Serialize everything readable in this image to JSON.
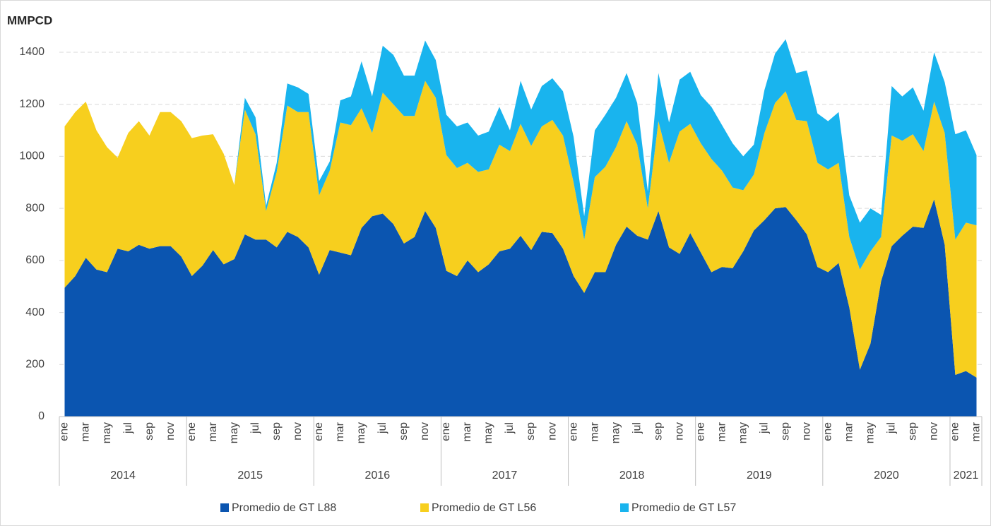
{
  "chart_data": {
    "type": "stacked_area",
    "y_title": "MMPCD",
    "categories": [
      "ene",
      null,
      "mar",
      null,
      "may",
      null,
      "jul",
      null,
      "sep",
      null,
      "nov",
      null,
      "ene",
      null,
      "mar",
      null,
      "may",
      null,
      "jul",
      null,
      "sep",
      null,
      "nov",
      null,
      "ene",
      null,
      "mar",
      null,
      "may",
      null,
      "jul",
      null,
      "sep",
      null,
      "nov",
      null,
      "ene",
      null,
      "mar",
      null,
      "may",
      null,
      "jul",
      null,
      "sep",
      null,
      "nov",
      null,
      "ene",
      null,
      "mar",
      null,
      "may",
      null,
      "jul",
      null,
      "sep",
      null,
      "nov",
      null,
      "ene",
      null,
      "mar",
      null,
      "may",
      null,
      "jul",
      null,
      "sep",
      null,
      "nov",
      null,
      "ene",
      null,
      "mar",
      null,
      "may",
      null,
      "jul",
      null,
      "sep",
      null,
      "nov",
      null,
      "ene",
      null,
      "mar"
    ],
    "years": [
      "2014",
      "2015",
      "2016",
      "2017",
      "2018",
      "2019",
      "2020",
      "2021"
    ],
    "ylim": [
      0,
      1400
    ],
    "yticks": [
      0,
      200,
      400,
      600,
      800,
      1000,
      1200,
      1400
    ],
    "grid": true,
    "legend": "bottom",
    "series": [
      {
        "name": "Promedio de GT L88",
        "color": "#0b55b0",
        "values": [
          495,
          540,
          610,
          565,
          555,
          645,
          635,
          660,
          645,
          655,
          655,
          615,
          540,
          580,
          640,
          585,
          605,
          700,
          680,
          680,
          650,
          710,
          690,
          650,
          545,
          640,
          630,
          620,
          725,
          770,
          780,
          740,
          665,
          690,
          790,
          725,
          560,
          540,
          600,
          555,
          585,
          635,
          645,
          695,
          640,
          710,
          705,
          645,
          540,
          475,
          555,
          555,
          660,
          730,
          695,
          680,
          790,
          650,
          625,
          705,
          630,
          555,
          575,
          570,
          635,
          715,
          755,
          800,
          805,
          755,
          700,
          575,
          555,
          590,
          420,
          180,
          280,
          520,
          655,
          695,
          730,
          725,
          835,
          660,
          160,
          175,
          150
        ]
      },
      {
        "name": "Promedio de GT L56",
        "color": "#f7cf1e",
        "values": [
          620,
          630,
          600,
          535,
          480,
          350,
          455,
          475,
          435,
          515,
          515,
          520,
          530,
          500,
          445,
          425,
          285,
          480,
          405,
          110,
          290,
          485,
          480,
          520,
          305,
          305,
          500,
          500,
          460,
          320,
          465,
          460,
          490,
          465,
          500,
          500,
          445,
          415,
          375,
          385,
          365,
          410,
          375,
          430,
          400,
          405,
          435,
          435,
          360,
          205,
          365,
          405,
          375,
          405,
          350,
          120,
          345,
          325,
          470,
          420,
          420,
          435,
          370,
          310,
          235,
          215,
          335,
          405,
          445,
          385,
          435,
          400,
          395,
          385,
          270,
          385,
          355,
          170,
          425,
          365,
          355,
          295,
          375,
          430,
          520,
          570,
          585
        ]
      },
      {
        "name": "Promedio de GT L57",
        "color": "#19b4ee",
        "values": [
          0,
          0,
          0,
          0,
          0,
          0,
          0,
          0,
          0,
          0,
          0,
          0,
          0,
          0,
          0,
          0,
          0,
          45,
          65,
          20,
          35,
          85,
          95,
          70,
          55,
          35,
          85,
          110,
          180,
          140,
          180,
          190,
          155,
          155,
          155,
          145,
          155,
          160,
          155,
          140,
          145,
          145,
          80,
          165,
          140,
          155,
          160,
          170,
          175,
          90,
          180,
          200,
          190,
          185,
          160,
          65,
          185,
          155,
          200,
          200,
          185,
          200,
          175,
          170,
          130,
          115,
          165,
          190,
          200,
          180,
          195,
          190,
          185,
          195,
          160,
          180,
          165,
          85,
          190,
          170,
          180,
          155,
          190,
          195,
          405,
          355,
          270
        ]
      }
    ]
  }
}
